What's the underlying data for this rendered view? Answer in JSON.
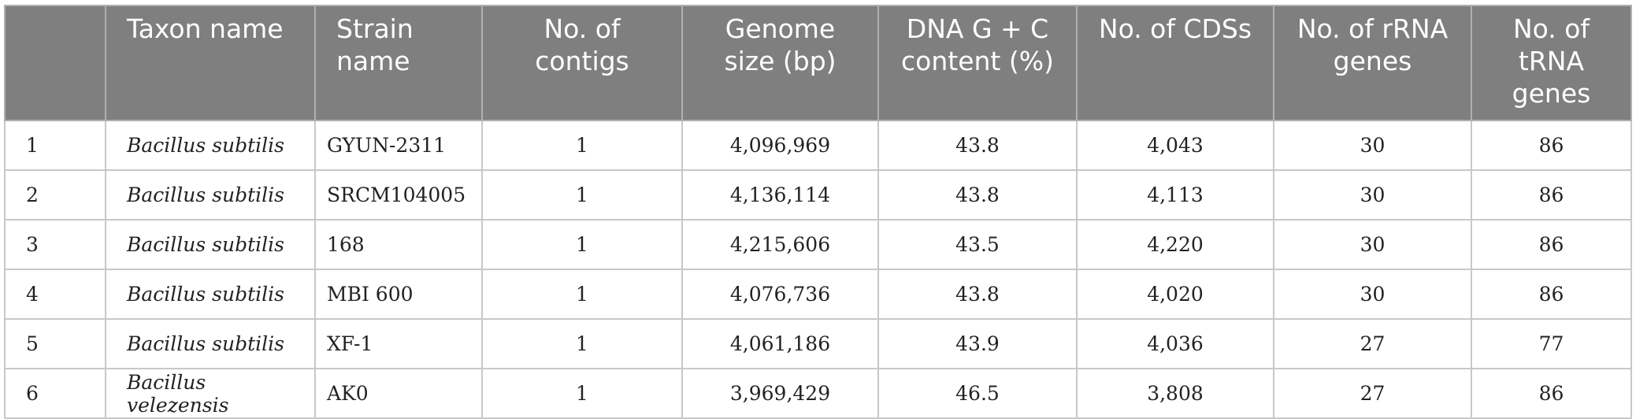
{
  "table": {
    "headers": {
      "index": "",
      "taxon": "Taxon name",
      "strain": "Strain name",
      "contigs": "No. of contigs",
      "genome_size": "Genome size (bp)",
      "gc": "DNA G + C content (%)",
      "cds": "No. of CDSs",
      "rrna": "No. of rRNA genes",
      "trna": "No. of tRNA genes"
    },
    "rows": [
      {
        "index": "1",
        "taxon": "Bacillus subtilis",
        "strain": "GYUN-2311",
        "contigs": "1",
        "genome_size": "4,096,969",
        "gc": "43.8",
        "cds": "4,043",
        "rrna": "30",
        "trna": "86"
      },
      {
        "index": "2",
        "taxon": "Bacillus subtilis",
        "strain": "SRCM104005",
        "contigs": "1",
        "genome_size": "4,136,114",
        "gc": "43.8",
        "cds": "4,113",
        "rrna": "30",
        "trna": "86"
      },
      {
        "index": "3",
        "taxon": "Bacillus subtilis",
        "strain": "168",
        "contigs": "1",
        "genome_size": "4,215,606",
        "gc": "43.5",
        "cds": "4,220",
        "rrna": "30",
        "trna": "86"
      },
      {
        "index": "4",
        "taxon": "Bacillus subtilis",
        "strain": "MBI 600",
        "contigs": "1",
        "genome_size": "4,076,736",
        "gc": "43.8",
        "cds": "4,020",
        "rrna": "30",
        "trna": "86"
      },
      {
        "index": "5",
        "taxon": "Bacillus subtilis",
        "strain": "XF-1",
        "contigs": "1",
        "genome_size": "4,061,186",
        "gc": "43.9",
        "cds": "4,036",
        "rrna": "27",
        "trna": "77"
      },
      {
        "index": "6",
        "taxon": "Bacillus velezensis",
        "strain": "AK0",
        "contigs": "1",
        "genome_size": "3,969,429",
        "gc": "46.5",
        "cds": "3,808",
        "rrna": "27",
        "trna": "86"
      }
    ]
  },
  "colors": {
    "header_background": "#7f7f7f",
    "header_text": "#ffffff",
    "border": "#c8c8c8",
    "body_text": "#222222"
  }
}
